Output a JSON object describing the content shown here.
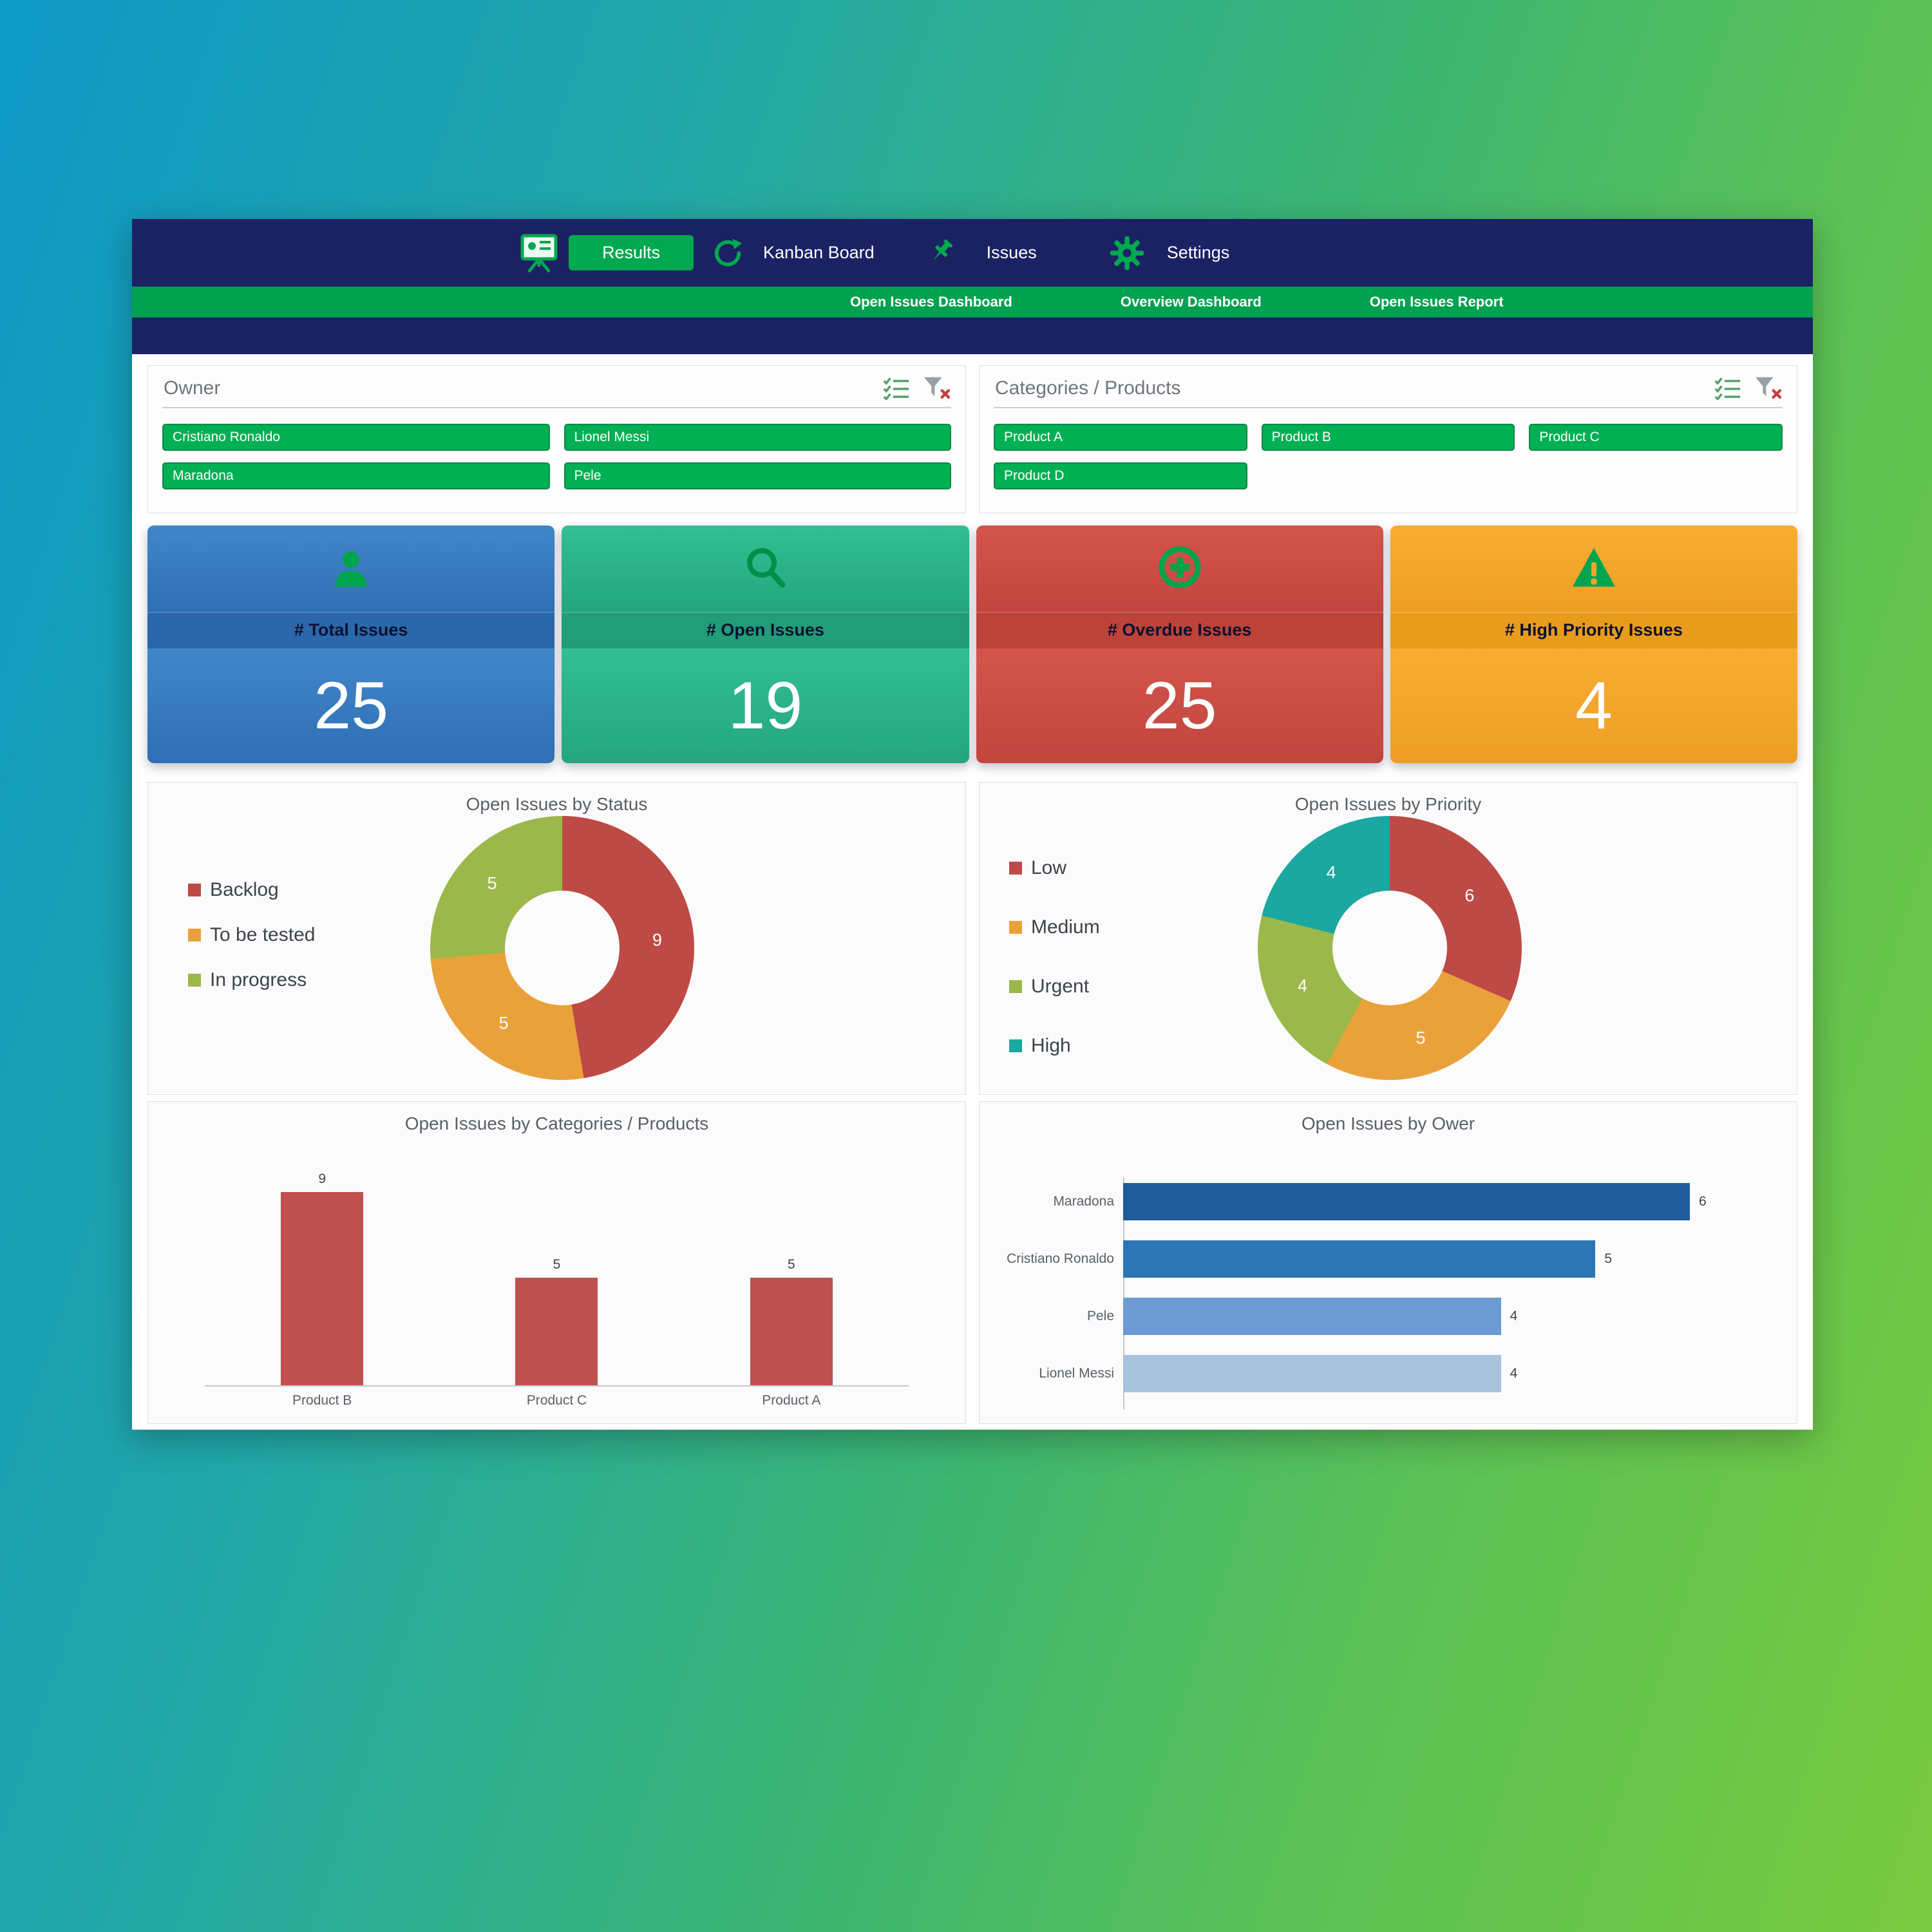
{
  "colors": {
    "navy": "#1b2264",
    "green": "#00a84f",
    "slicer_green": "#00b053",
    "kpi_blue": "#3578ba",
    "kpi_teal": "#27ae85",
    "kpi_red": "#c9483f",
    "kpi_orange": "#f2a52c",
    "chart_red": "#be4a45",
    "chart_orange": "#e9a23b",
    "chart_olive": "#9cb84a",
    "chart_teal": "#1aa8a0",
    "bar_red": "#c0504d"
  },
  "nav": {
    "tabs": [
      {
        "label": "Results",
        "icon": "presentation-icon",
        "active": true
      },
      {
        "label": "Kanban Board",
        "icon": "refresh-icon",
        "active": false
      },
      {
        "label": "Issues",
        "icon": "pin-icon",
        "active": false
      },
      {
        "label": "Settings",
        "icon": "gear-icon",
        "active": false
      }
    ],
    "links": [
      "Open Issues Dashboard",
      "Overview Dashboard",
      "Open Issues Report"
    ]
  },
  "slicers": [
    {
      "title": "Owner",
      "items": [
        "Cristiano Ronaldo",
        "Lionel Messi",
        "Maradona",
        "Pele"
      ],
      "icons": [
        "multiselect-icon",
        "clear-filter-icon"
      ]
    },
    {
      "title": "Categories / Products",
      "items": [
        "Product A",
        "Product B",
        "Product C",
        "Product D"
      ],
      "icons": [
        "multiselect-icon",
        "clear-filter-icon"
      ]
    }
  ],
  "kpis": [
    {
      "label": "# Total Issues",
      "value": "25",
      "icon": "person-icon",
      "color": "#3578ba"
    },
    {
      "label": "# Open Issues",
      "value": "19",
      "icon": "search-icon",
      "color": "#27ae85"
    },
    {
      "label": "# Overdue Issues",
      "value": "25",
      "icon": "plus-circle-icon",
      "color": "#c9483f"
    },
    {
      "label": "# High Priority Issues",
      "value": "4",
      "icon": "warning-icon",
      "color": "#f2a52c"
    }
  ],
  "chart_data": [
    {
      "type": "pie",
      "donut": true,
      "title": "Open Issues by Status",
      "labels": [
        "Backlog",
        "To be tested",
        "In progress"
      ],
      "values": [
        9,
        5,
        5
      ],
      "colors": [
        "#be4a45",
        "#e9a23b",
        "#9cb84a"
      ],
      "legend_position": "left",
      "total": 19
    },
    {
      "type": "pie",
      "donut": true,
      "title": "Open Issues by Priority",
      "labels": [
        "Low",
        "Medium",
        "Urgent",
        "High"
      ],
      "values": [
        6,
        5,
        4,
        4
      ],
      "colors": [
        "#be4a45",
        "#e9a23b",
        "#9cb84a",
        "#1aa8a0"
      ],
      "legend_position": "left",
      "total": 19
    },
    {
      "type": "bar",
      "title": "Open Issues by Categories / Products",
      "categories": [
        "Product B",
        "Product C",
        "Product A"
      ],
      "values": [
        9,
        5,
        5
      ],
      "color": "#c0504d",
      "ylim": [
        0,
        9
      ]
    },
    {
      "type": "bar-horizontal",
      "title": "Open Issues by Ower",
      "categories": [
        "Maradona",
        "Cristiano Ronaldo",
        "Pele",
        "Lionel Messi"
      ],
      "values": [
        6,
        5,
        4,
        4
      ],
      "colors": [
        "#1f5c99",
        "#2e75b6",
        "#6b9bd2",
        "#a7c3de"
      ],
      "xlim": [
        0,
        6
      ]
    }
  ]
}
